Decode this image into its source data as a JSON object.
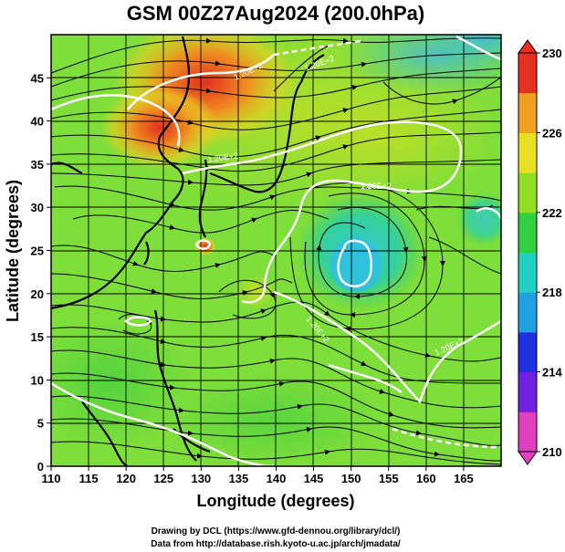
{
  "title": "GSM 00Z27Aug2024 (200.0hPa)",
  "x_axis": {
    "label": "Longitude (degrees)",
    "min": 110,
    "max": 170,
    "ticks": [
      "110",
      "115",
      "120",
      "125",
      "130",
      "135",
      "140",
      "145",
      "150",
      "155",
      "160",
      "165"
    ]
  },
  "y_axis": {
    "label": "Latitude  (degrees)",
    "min": 0,
    "max": 50,
    "ticks": [
      "0",
      "5",
      "10",
      "15",
      "20",
      "25",
      "30",
      "35",
      "40",
      "45"
    ]
  },
  "colorbar": {
    "min": 210,
    "max": 230,
    "ticks": [
      "210",
      "214",
      "218",
      "222",
      "226",
      "230"
    ],
    "colors": [
      "#e040c0",
      "#7020e0",
      "#2030e0",
      "#20a0e0",
      "#20d0c0",
      "#30d040",
      "#90e020",
      "#e8e020",
      "#f0a020",
      "#e83020"
    ]
  },
  "contour_labels": [
    "1.20E+2",
    "1.20E+2",
    "1.20E+2",
    "1.20E+2",
    "1.20E+2",
    "1.20E+2"
  ],
  "credits": [
    "Drawing by DCL (https://www.gfd-dennou.org/library/dcl/)",
    "Data from http://database.rish.kyoto-u.ac.jp/arch/jmadata/"
  ]
}
